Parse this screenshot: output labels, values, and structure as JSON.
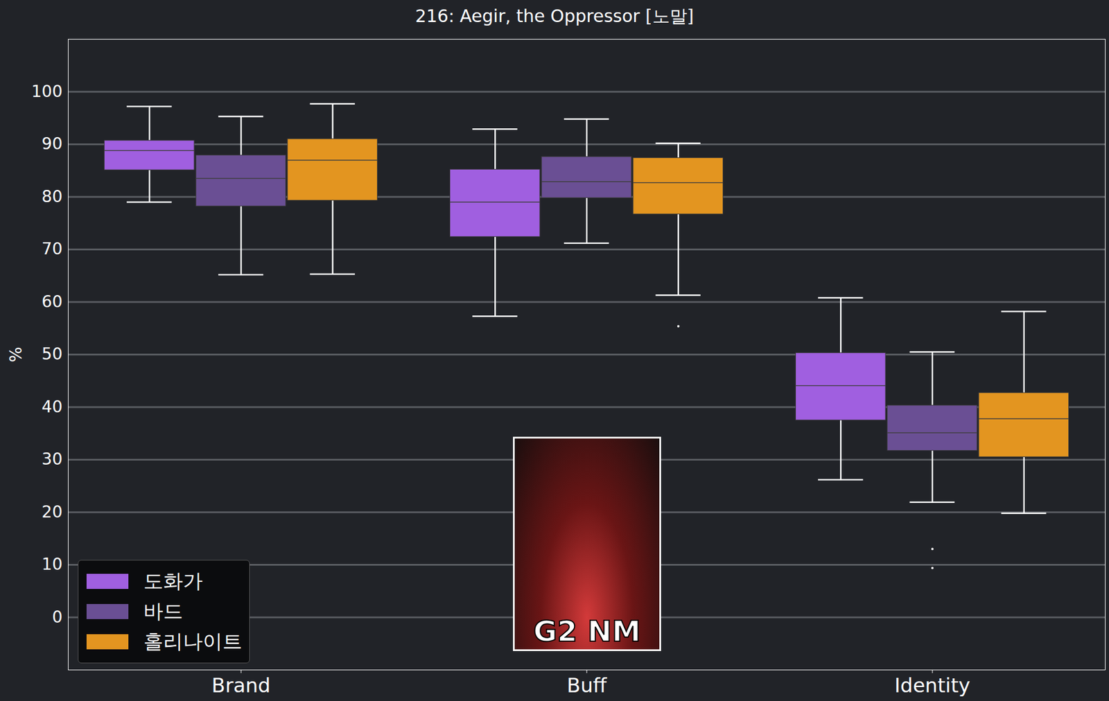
{
  "chart_data": {
    "type": "box",
    "title": "216: Aegir, the Oppressor [노말]",
    "y_label": "%",
    "categories": [
      "Brand",
      "Buff",
      "Identity"
    ],
    "series": [
      {
        "name": "도화가",
        "color": "#a05fe0",
        "values": [
          {
            "low": 79.0,
            "q1": 85.1,
            "median": 88.8,
            "q3": 90.7,
            "high": 97.2,
            "outliers": []
          },
          {
            "low": 57.3,
            "q1": 72.4,
            "median": 79.0,
            "q3": 85.2,
            "high": 92.9,
            "outliers": []
          },
          {
            "low": 26.2,
            "q1": 37.5,
            "median": 44.1,
            "q3": 50.3,
            "high": 60.8,
            "outliers": []
          }
        ]
      },
      {
        "name": "바드",
        "color": "#6a4f94",
        "values": [
          {
            "low": 65.2,
            "q1": 78.2,
            "median": 83.5,
            "q3": 87.9,
            "high": 95.3,
            "outliers": []
          },
          {
            "low": 71.2,
            "q1": 79.8,
            "median": 82.9,
            "q3": 87.6,
            "high": 94.8,
            "outliers": []
          },
          {
            "low": 21.9,
            "q1": 31.7,
            "median": 35.1,
            "q3": 40.3,
            "high": 50.5,
            "outliers": [
              13.0,
              9.4
            ]
          }
        ]
      },
      {
        "name": "홀리나이트",
        "color": "#e39520",
        "values": [
          {
            "low": 65.3,
            "q1": 79.3,
            "median": 87.0,
            "q3": 91.0,
            "high": 97.7,
            "outliers": []
          },
          {
            "low": 61.3,
            "q1": 76.7,
            "median": 82.7,
            "q3": 87.4,
            "high": 90.2,
            "outliers": [
              55.4
            ]
          },
          {
            "low": 19.8,
            "q1": 30.5,
            "median": 37.8,
            "q3": 42.7,
            "high": 58.2,
            "outliers": []
          }
        ]
      }
    ],
    "annotation": "G2 NM",
    "ylim": [
      -10,
      110
    ],
    "yticks": [
      0,
      10,
      20,
      30,
      40,
      50,
      60,
      70,
      80,
      90,
      100
    ],
    "grid": true,
    "legend": "lower left"
  }
}
